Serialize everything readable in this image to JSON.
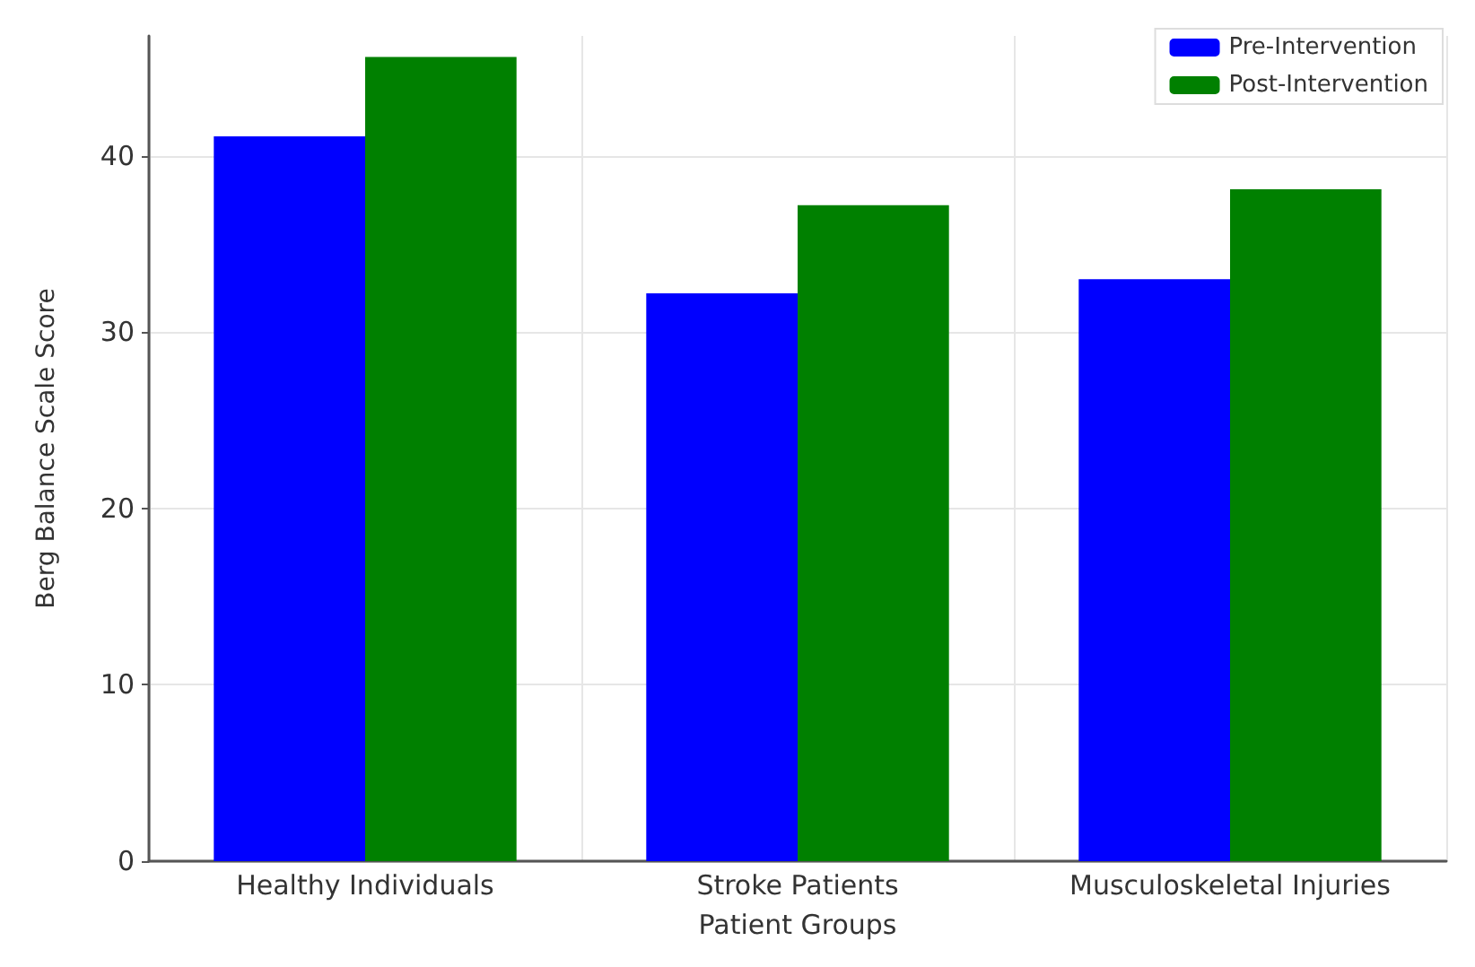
{
  "chart_data": {
    "type": "bar",
    "xlabel": "Patient Groups",
    "ylabel": "Berg Balance Scale Score",
    "categories": [
      "Healthy Individuals",
      "Stroke Patients",
      "Musculoskeletal Injuries"
    ],
    "series": [
      {
        "name": "Pre-Intervention",
        "color": "#0000ff",
        "values": [
          41.1,
          32.2,
          33.0
        ]
      },
      {
        "name": "Post-Intervention",
        "color": "#008000",
        "values": [
          45.6,
          37.2,
          38.1
        ]
      }
    ],
    "ylim": [
      0,
      46.8
    ],
    "yticks": [
      0,
      10,
      20,
      30,
      40
    ],
    "grid": true,
    "legend": "top right"
  }
}
